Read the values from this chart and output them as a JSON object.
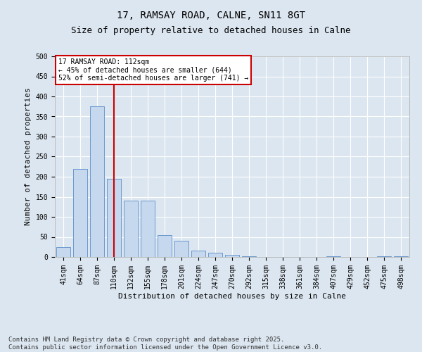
{
  "title_line1": "17, RAMSAY ROAD, CALNE, SN11 8GT",
  "title_line2": "Size of property relative to detached houses in Calne",
  "xlabel": "Distribution of detached houses by size in Calne",
  "ylabel": "Number of detached properties",
  "categories": [
    "41sqm",
    "64sqm",
    "87sqm",
    "110sqm",
    "132sqm",
    "155sqm",
    "178sqm",
    "201sqm",
    "224sqm",
    "247sqm",
    "270sqm",
    "292sqm",
    "315sqm",
    "338sqm",
    "361sqm",
    "384sqm",
    "407sqm",
    "429sqm",
    "452sqm",
    "475sqm",
    "498sqm"
  ],
  "values": [
    25,
    220,
    375,
    195,
    140,
    140,
    55,
    40,
    15,
    10,
    5,
    2,
    0,
    0,
    0,
    0,
    2,
    0,
    0,
    2,
    2
  ],
  "bar_color": "#c5d8ee",
  "bar_edge_color": "#5b8dc8",
  "bar_width": 0.85,
  "vline_x_index": 3,
  "vline_color": "#cc0000",
  "annotation_text": "17 RAMSAY ROAD: 112sqm\n← 45% of detached houses are smaller (644)\n52% of semi-detached houses are larger (741) →",
  "annotation_box_facecolor": "#ffffff",
  "annotation_box_edgecolor": "#cc0000",
  "ylim": [
    0,
    500
  ],
  "yticks": [
    0,
    50,
    100,
    150,
    200,
    250,
    300,
    350,
    400,
    450,
    500
  ],
  "background_color": "#dce6f0",
  "plot_bg_color": "#dce6f0",
  "grid_color": "#ffffff",
  "footer_text": "Contains HM Land Registry data © Crown copyright and database right 2025.\nContains public sector information licensed under the Open Government Licence v3.0.",
  "title_fontsize": 10,
  "subtitle_fontsize": 9,
  "axis_label_fontsize": 8,
  "tick_fontsize": 7,
  "footer_fontsize": 6.5,
  "annot_fontsize": 7
}
